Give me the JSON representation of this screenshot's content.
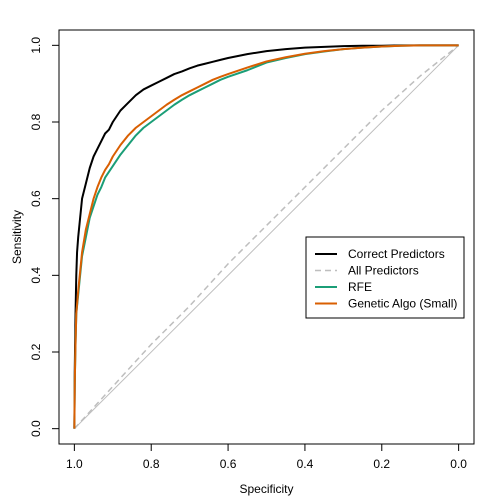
{
  "chart_data": {
    "type": "line",
    "title": "",
    "xlabel": "Specificity",
    "ylabel": "Sensitivity",
    "xlim": [
      1.04,
      -0.04
    ],
    "ylim": [
      -0.04,
      1.04
    ],
    "x_reversed": true,
    "x_ticks": [
      1.0,
      0.8,
      0.6,
      0.4,
      0.2,
      0.0
    ],
    "x_tick_labels": [
      "1.0",
      "0.8",
      "0.6",
      "0.4",
      "0.2",
      "0.0"
    ],
    "y_ticks": [
      0.0,
      0.2,
      0.4,
      0.6,
      0.8,
      1.0
    ],
    "y_tick_labels": [
      "0.0",
      "0.2",
      "0.4",
      "0.6",
      "0.8",
      "1.0"
    ],
    "grid": false,
    "legend_position": "center-right",
    "reference_line": {
      "from": [
        1.0,
        0.0
      ],
      "to": [
        0.0,
        1.0
      ],
      "color": "#bebebe"
    },
    "series": [
      {
        "name": "Correct Predictors",
        "color": "#000000",
        "dashed": false,
        "x": [
          1.0,
          0.999,
          0.997,
          0.995,
          0.993,
          0.99,
          0.985,
          0.98,
          0.97,
          0.96,
          0.95,
          0.94,
          0.93,
          0.92,
          0.91,
          0.9,
          0.88,
          0.86,
          0.84,
          0.82,
          0.8,
          0.78,
          0.76,
          0.74,
          0.72,
          0.7,
          0.68,
          0.66,
          0.64,
          0.62,
          0.6,
          0.55,
          0.5,
          0.45,
          0.4,
          0.35,
          0.3,
          0.25,
          0.2,
          0.15,
          0.1,
          0.05,
          0.0
        ],
        "y": [
          0.0,
          0.15,
          0.3,
          0.4,
          0.46,
          0.5,
          0.55,
          0.6,
          0.64,
          0.68,
          0.71,
          0.73,
          0.75,
          0.77,
          0.78,
          0.8,
          0.83,
          0.85,
          0.87,
          0.885,
          0.895,
          0.905,
          0.915,
          0.925,
          0.932,
          0.94,
          0.947,
          0.952,
          0.957,
          0.962,
          0.967,
          0.977,
          0.985,
          0.99,
          0.994,
          0.996,
          0.998,
          0.999,
          0.999,
          1.0,
          1.0,
          1.0,
          1.0
        ]
      },
      {
        "name": "All Predictors",
        "color": "#bebebe",
        "dashed": true,
        "x": [
          1.0,
          0.9,
          0.8,
          0.7,
          0.6,
          0.5,
          0.4,
          0.3,
          0.2,
          0.1,
          0.05,
          0.0
        ],
        "y": [
          0.0,
          0.11,
          0.22,
          0.32,
          0.43,
          0.53,
          0.63,
          0.73,
          0.83,
          0.92,
          0.96,
          1.0
        ]
      },
      {
        "name": "RFE",
        "color": "#1b9e77",
        "dashed": false,
        "x": [
          1.0,
          0.999,
          0.997,
          0.995,
          0.99,
          0.985,
          0.98,
          0.97,
          0.96,
          0.95,
          0.94,
          0.93,
          0.92,
          0.91,
          0.9,
          0.89,
          0.88,
          0.86,
          0.84,
          0.82,
          0.8,
          0.78,
          0.76,
          0.74,
          0.72,
          0.7,
          0.68,
          0.66,
          0.64,
          0.62,
          0.6,
          0.55,
          0.5,
          0.45,
          0.4,
          0.35,
          0.3,
          0.25,
          0.2,
          0.15,
          0.1,
          0.05,
          0.0
        ],
        "y": [
          0.0,
          0.12,
          0.22,
          0.3,
          0.35,
          0.4,
          0.45,
          0.5,
          0.55,
          0.58,
          0.61,
          0.63,
          0.655,
          0.67,
          0.685,
          0.7,
          0.715,
          0.74,
          0.765,
          0.785,
          0.8,
          0.815,
          0.83,
          0.845,
          0.858,
          0.87,
          0.88,
          0.89,
          0.9,
          0.91,
          0.918,
          0.935,
          0.955,
          0.967,
          0.977,
          0.984,
          0.99,
          0.994,
          0.997,
          0.999,
          1.0,
          1.0,
          1.0
        ]
      },
      {
        "name": "Genetic Algo (Small)",
        "color": "#d95f02",
        "dashed": false,
        "x": [
          1.0,
          0.999,
          0.997,
          0.995,
          0.99,
          0.985,
          0.98,
          0.97,
          0.96,
          0.95,
          0.94,
          0.93,
          0.92,
          0.91,
          0.9,
          0.89,
          0.88,
          0.86,
          0.84,
          0.82,
          0.8,
          0.78,
          0.76,
          0.74,
          0.72,
          0.7,
          0.68,
          0.66,
          0.64,
          0.62,
          0.6,
          0.55,
          0.5,
          0.45,
          0.4,
          0.35,
          0.3,
          0.25,
          0.2,
          0.15,
          0.1,
          0.05,
          0.0
        ],
        "y": [
          0.0,
          0.12,
          0.22,
          0.3,
          0.36,
          0.41,
          0.46,
          0.52,
          0.56,
          0.6,
          0.63,
          0.655,
          0.675,
          0.69,
          0.71,
          0.725,
          0.74,
          0.765,
          0.785,
          0.8,
          0.815,
          0.83,
          0.845,
          0.858,
          0.87,
          0.88,
          0.89,
          0.9,
          0.91,
          0.918,
          0.925,
          0.942,
          0.958,
          0.969,
          0.978,
          0.985,
          0.99,
          0.994,
          0.997,
          0.999,
          1.0,
          1.0,
          1.0
        ]
      }
    ]
  }
}
